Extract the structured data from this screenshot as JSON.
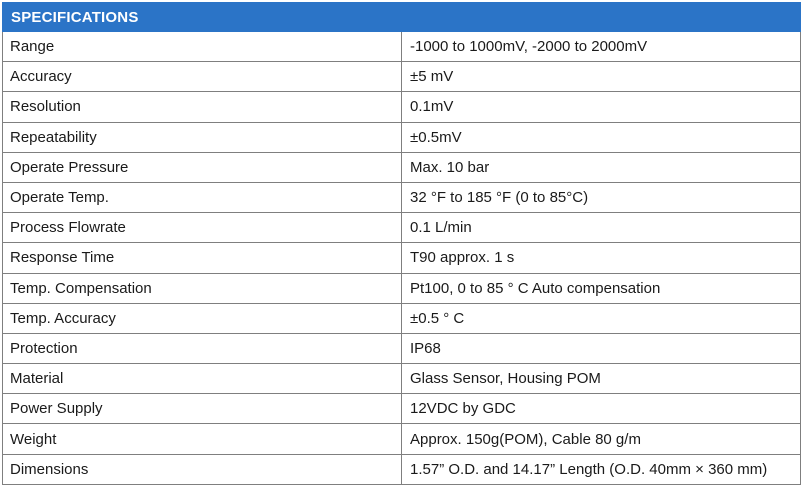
{
  "header": {
    "title": "SPECIFICATIONS"
  },
  "rows": [
    {
      "label": "Range",
      "value": "-1000 to 1000mV, -2000 to 2000mV"
    },
    {
      "label": "Accuracy",
      "value": "±5 mV"
    },
    {
      "label": "Resolution",
      "value": "0.1mV"
    },
    {
      "label": "Repeatability",
      "value": "±0.5mV"
    },
    {
      "label": "Operate Pressure",
      "value": "Max. 10 bar"
    },
    {
      "label": "Operate Temp.",
      "value": "32 °F to 185 °F (0 to 85°C)"
    },
    {
      "label": "Process Flowrate",
      "value": "0.1 L/min"
    },
    {
      "label": "Response Time",
      "value": "T90 approx. 1 s"
    },
    {
      "label": "Temp. Compensation",
      "value": "Pt100, 0 to 85 ° C Auto compensation"
    },
    {
      "label": "Temp. Accuracy",
      "value": "±0.5 ° C"
    },
    {
      "label": "Protection",
      "value": "IP68"
    },
    {
      "label": "Material",
      "value": "Glass Sensor, Housing POM"
    },
    {
      "label": "Power Supply",
      "value": "12VDC by GDC"
    },
    {
      "label": "Weight",
      "value": "Approx. 150g(POM), Cable 80 g/m"
    },
    {
      "label": "Dimensions",
      "value": "1.57” O.D. and 14.17” Length (O.D. 40mm × 360 mm)"
    }
  ],
  "colors": {
    "header_background": "#2b74c7",
    "header_text": "#ffffff",
    "border": "#7f7f7f"
  }
}
